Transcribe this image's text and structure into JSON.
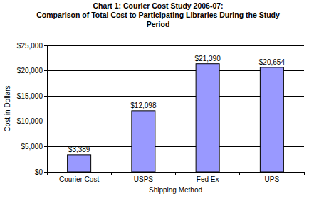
{
  "chart_data": {
    "type": "bar",
    "title": [
      "Chart 1: Courier Cost Study 2006-07:",
      "Comparison of Total Cost to Participating Libraries During the Study",
      "Period"
    ],
    "x_label": "Shipping Method",
    "y_label": "Cost in Dollars",
    "categories": [
      "Courier Cost",
      "USPS",
      "Fed Ex",
      "UPS"
    ],
    "values": [
      3389,
      12098,
      21390,
      20654
    ],
    "value_labels": [
      "$3,389",
      "$12,098",
      "$21,390",
      "$20,654"
    ],
    "color": "#9999ff",
    "ylim": [
      0,
      25000
    ],
    "yticks": [
      {
        "value": 0,
        "label": "$0"
      },
      {
        "value": 5000,
        "label": "$5,000"
      },
      {
        "value": 10000,
        "label": "$10,000"
      },
      {
        "value": 15000,
        "label": "$15,000"
      },
      {
        "value": 20000,
        "label": "$20,000"
      },
      {
        "value": 25000,
        "label": "$25,000"
      }
    ],
    "grid": true,
    "data_labels": true
  }
}
